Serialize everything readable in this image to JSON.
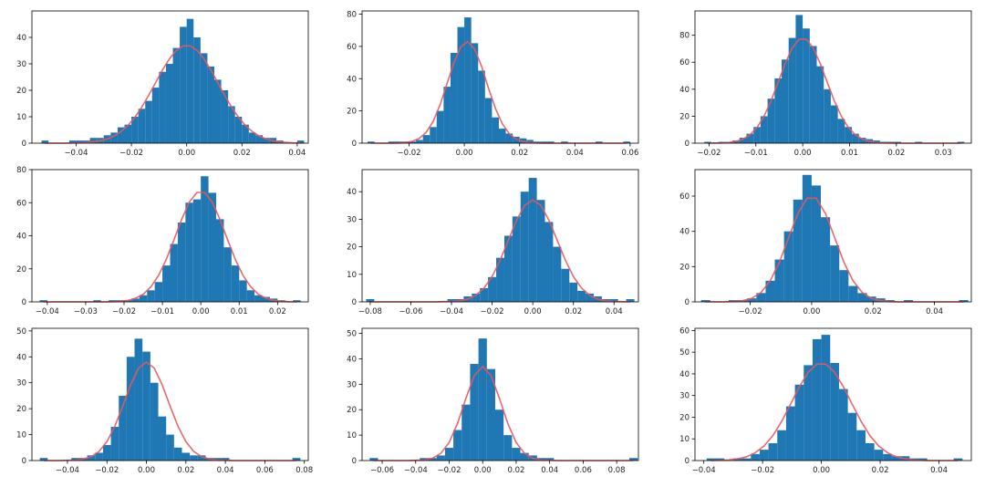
{
  "chart_data": [
    {
      "type": "histogram",
      "color": "#1f77b4",
      "line": {
        "color": "#e8585c",
        "values": [
          0,
          0,
          0,
          0,
          0.1,
          0.1,
          0.3,
          0.5,
          0.9,
          1.6,
          2.7,
          4.4,
          6.7,
          9.8,
          13.6,
          18.1,
          22.9,
          27.7,
          31.9,
          35.1,
          36.8,
          36.8,
          35.1,
          31.9,
          27.7,
          22.9,
          18.1,
          13.6,
          9.8,
          6.7,
          4.4,
          2.7,
          1.6,
          0.9,
          0.5,
          0.3,
          0.1,
          0.1
        ]
      },
      "bins": [
        -0.0525,
        -0.05,
        -0.0475,
        -0.045,
        -0.0425,
        -0.04,
        -0.0375,
        -0.035,
        -0.0325,
        -0.03,
        -0.0275,
        -0.025,
        -0.0225,
        -0.02,
        -0.0175,
        -0.015,
        -0.0125,
        -0.01,
        -0.0075,
        -0.005,
        -0.0025,
        0,
        0.0025,
        0.005,
        0.0075,
        0.01,
        0.0125,
        0.015,
        0.0175,
        0.02,
        0.0225,
        0.025,
        0.0275,
        0.03,
        0.0325,
        0.035,
        0.0375,
        0.04,
        0.0425
      ],
      "counts": [
        1,
        0,
        0,
        0,
        1,
        1,
        1,
        2,
        2,
        3,
        4,
        6,
        7,
        10,
        13,
        16,
        21,
        27,
        30,
        36,
        44,
        47,
        40,
        34,
        29,
        24,
        20,
        14,
        10,
        7,
        4,
        3,
        2,
        2,
        1,
        0,
        0,
        1
      ],
      "xlim": [
        -0.056,
        0.044
      ],
      "xticks": [
        {
          "value": -0.04,
          "label": "−0.04"
        },
        {
          "value": -0.02,
          "label": "−0.02"
        },
        {
          "value": 0,
          "label": "0.00"
        },
        0.02,
        0.04
      ],
      "ylim": [
        0,
        50
      ],
      "yticks": [
        0,
        10,
        20,
        30,
        40
      ]
    },
    {
      "type": "histogram",
      "color": "#1f77b4",
      "line": {
        "color": "#e8585c",
        "values": [
          0,
          0,
          0,
          0,
          0.1,
          0.4,
          1.2,
          3.0,
          6.8,
          13.6,
          23.9,
          36.9,
          50.0,
          59.8,
          63,
          58.3,
          47.6,
          34.1,
          21.6,
          12.0,
          5.9,
          2.5,
          1.0,
          0.3,
          0.1,
          0,
          0,
          0,
          0,
          0,
          0,
          0,
          0,
          0,
          0,
          0,
          0,
          0
        ]
      },
      "bins": [
        -0.035,
        -0.0325,
        -0.03,
        -0.0275,
        -0.025,
        -0.0225,
        -0.02,
        -0.0175,
        -0.015,
        -0.0125,
        -0.01,
        -0.0075,
        -0.005,
        -0.0025,
        0,
        0.0025,
        0.005,
        0.0075,
        0.01,
        0.0125,
        0.015,
        0.0175,
        0.02,
        0.0225,
        0.025,
        0.0275,
        0.03,
        0.0325,
        0.035,
        0.0375,
        0.04,
        0.0425,
        0.045,
        0.0475,
        0.05,
        0.0525,
        0.055,
        0.0575,
        0.06
      ],
      "counts": [
        1,
        0,
        0,
        1,
        1,
        1,
        1,
        2,
        5,
        10,
        20,
        35,
        56,
        72,
        78,
        62,
        45,
        28,
        16,
        9,
        6,
        4,
        3,
        2,
        1,
        1,
        1,
        0,
        1,
        0,
        0,
        0,
        0,
        1,
        0,
        0,
        0,
        1
      ],
      "xlim": [
        -0.037,
        0.063
      ],
      "xticks": [
        {
          "value": -0.02,
          "label": "−0.02"
        },
        {
          "value": 0,
          "label": "0.00"
        },
        0.02,
        0.04,
        0.06
      ],
      "ylim": [
        0,
        82
      ],
      "yticks": [
        0,
        20,
        40,
        60,
        80
      ]
    },
    {
      "type": "histogram",
      "color": "#1f77b4",
      "line": {
        "color": "#e8585c",
        "values": [
          0,
          0.1,
          0.2,
          0.5,
          1.3,
          3.0,
          6.2,
          11.6,
          20.0,
          31.4,
          45.0,
          58.9,
          70.5,
          77.1,
          77.1,
          70.5,
          58.9,
          45.0,
          31.4,
          20.0,
          11.6,
          6.2,
          3.0,
          1.3,
          0.5,
          0.2,
          0.1,
          0,
          0,
          0,
          0,
          0,
          0,
          0,
          0,
          0,
          0
        ]
      },
      "bins": [
        -0.021,
        -0.0195,
        -0.018,
        -0.0165,
        -0.015,
        -0.0135,
        -0.012,
        -0.0105,
        -0.009,
        -0.0075,
        -0.006,
        -0.0045,
        -0.003,
        -0.0015,
        0,
        0.0015,
        0.003,
        0.0045,
        0.006,
        0.0075,
        0.009,
        0.0105,
        0.012,
        0.0135,
        0.015,
        0.0165,
        0.018,
        0.0195,
        0.021,
        0.0225,
        0.024,
        0.0255,
        0.027,
        0.0285,
        0.03,
        0.0315,
        0.033,
        0.0345
      ],
      "counts": [
        1,
        0,
        1,
        1,
        2,
        4,
        7,
        12,
        20,
        33,
        48,
        62,
        78,
        95,
        85,
        72,
        57,
        40,
        28,
        18,
        12,
        7,
        4,
        3,
        2,
        1,
        1,
        1,
        0,
        0,
        1,
        0,
        0,
        0,
        0,
        0,
        1
      ],
      "xlim": [
        -0.023,
        0.036
      ],
      "xticks": [
        {
          "value": -0.02,
          "label": "−0.02"
        },
        {
          "value": -0.01,
          "label": "−0.01"
        },
        {
          "value": 0,
          "label": "0.00"
        },
        0.01,
        0.02,
        0.03
      ],
      "ylim": [
        0,
        98
      ],
      "yticks": [
        0,
        20,
        40,
        60,
        80
      ]
    },
    {
      "type": "histogram",
      "color": "#1f77b4",
      "line": {
        "color": "#e8585c",
        "values": [
          0,
          0,
          0,
          0,
          0,
          0,
          0,
          0,
          0,
          0.1,
          0.4,
          0.9,
          2.2,
          4.6,
          9.1,
          16.0,
          25.6,
          37.5,
          49.8,
          60.3,
          66.2,
          66.2,
          60.3,
          49.8,
          37.5,
          25.6,
          16.0,
          9.1,
          4.6,
          2.2,
          0.9,
          0.4,
          0.1,
          0
        ]
      },
      "bins": [
        -0.042,
        -0.04,
        -0.038,
        -0.036,
        -0.034,
        -0.032,
        -0.03,
        -0.028,
        -0.026,
        -0.024,
        -0.022,
        -0.02,
        -0.018,
        -0.016,
        -0.014,
        -0.012,
        -0.01,
        -0.008,
        -0.006,
        -0.004,
        -0.002,
        0,
        0.002,
        0.004,
        0.006,
        0.008,
        0.01,
        0.012,
        0.014,
        0.016,
        0.018,
        0.02,
        0.022,
        0.024,
        0.026
      ],
      "counts": [
        1,
        0,
        0,
        0,
        0,
        0,
        0,
        1,
        0,
        1,
        1,
        1,
        2,
        4,
        7,
        12,
        22,
        35,
        48,
        60,
        62,
        76,
        66,
        50,
        33,
        22,
        13,
        7,
        4,
        3,
        2,
        1,
        0,
        1
      ],
      "xlim": [
        -0.044,
        0.028
      ],
      "xticks": [
        {
          "value": -0.04,
          "label": "−0.04"
        },
        {
          "value": -0.03,
          "label": "−0.03"
        },
        {
          "value": -0.02,
          "label": "−0.02"
        },
        {
          "value": -0.01,
          "label": "−0.01"
        },
        {
          "value": 0,
          "label": "0.00"
        },
        0.01,
        0.02
      ],
      "ylim": [
        0,
        80
      ],
      "yticks": [
        0,
        20,
        40,
        60,
        80
      ]
    },
    {
      "type": "histogram",
      "color": "#1f77b4",
      "line": {
        "color": "#e8585c",
        "values": [
          0,
          0,
          0,
          0,
          0,
          0,
          0,
          0,
          0,
          0.1,
          0.1,
          0.4,
          1.0,
          2.4,
          5.0,
          9.2,
          15.2,
          22.4,
          29.6,
          35.0,
          37,
          35.0,
          29.6,
          22.4,
          15.2,
          9.2,
          5.0,
          2.4,
          1.0,
          0.4,
          0.1,
          0.1,
          0
        ]
      },
      "bins": [
        -0.082,
        -0.078,
        -0.074,
        -0.07,
        -0.066,
        -0.062,
        -0.058,
        -0.054,
        -0.05,
        -0.046,
        -0.042,
        -0.038,
        -0.034,
        -0.03,
        -0.026,
        -0.022,
        -0.018,
        -0.014,
        -0.01,
        -0.006,
        -0.002,
        0.002,
        0.006,
        0.01,
        0.014,
        0.018,
        0.022,
        0.026,
        0.03,
        0.034,
        0.038,
        0.042,
        0.046,
        0.05
      ],
      "counts": [
        1,
        0,
        0,
        0,
        0,
        0,
        0,
        0,
        0,
        0,
        1,
        1,
        2,
        3,
        5,
        9,
        16,
        24,
        31,
        40,
        45,
        37,
        29,
        20,
        12,
        7,
        4,
        3,
        2,
        1,
        1,
        0,
        1
      ],
      "xlim": [
        -0.084,
        0.052
      ],
      "xticks": [
        {
          "value": -0.08,
          "label": "−0.08"
        },
        {
          "value": -0.06,
          "label": "−0.06"
        },
        {
          "value": -0.04,
          "label": "−0.04"
        },
        {
          "value": -0.02,
          "label": "−0.02"
        },
        {
          "value": 0,
          "label": "0.00"
        },
        0.02,
        0.04
      ],
      "ylim": [
        0,
        48
      ],
      "yticks": [
        0,
        10,
        20,
        30,
        40
      ]
    },
    {
      "type": "histogram",
      "color": "#1f77b4",
      "line": {
        "color": "#e8585c",
        "values": [
          0,
          0,
          0,
          0.2,
          0.7,
          2.0,
          5.3,
          11.9,
          22.5,
          36.4,
          50.1,
          58.8,
          58.8,
          50.1,
          36.4,
          22.5,
          11.9,
          5.3,
          2.0,
          0.7,
          0.2,
          0,
          0,
          0,
          0,
          0,
          0,
          0,
          0
        ]
      },
      "bins": [
        -0.036,
        -0.033,
        -0.03,
        -0.027,
        -0.024,
        -0.021,
        -0.018,
        -0.015,
        -0.012,
        -0.009,
        -0.006,
        -0.003,
        0,
        0.003,
        0.006,
        0.009,
        0.012,
        0.015,
        0.018,
        0.021,
        0.024,
        0.027,
        0.03,
        0.033,
        0.036,
        0.039,
        0.042,
        0.045,
        0.048,
        0.051
      ],
      "counts": [
        1,
        0,
        0,
        1,
        1,
        2,
        5,
        12,
        24,
        40,
        58,
        72,
        66,
        48,
        32,
        18,
        9,
        5,
        3,
        2,
        1,
        0,
        1,
        0,
        0,
        0,
        0,
        0,
        1
      ],
      "xlim": [
        -0.038,
        0.052
      ],
      "xticks": [
        {
          "value": -0.02,
          "label": "−0.02"
        },
        {
          "value": 0,
          "label": "0.00"
        },
        0.02,
        0.04
      ],
      "ylim": [
        0,
        75
      ],
      "yticks": [
        0,
        20,
        40,
        60
      ]
    },
    {
      "type": "histogram",
      "color": "#1f77b4",
      "line": {
        "color": "#e8585c",
        "values": [
          0,
          0,
          0,
          0.1,
          0.2,
          0.6,
          1.5,
          3.5,
          7.3,
          13.2,
          21.0,
          29.2,
          35.6,
          38,
          35.6,
          29.2,
          21.0,
          13.2,
          7.3,
          3.5,
          1.5,
          0.6,
          0.2,
          0.1,
          0,
          0,
          0,
          0,
          0,
          0,
          0,
          0,
          0
        ]
      },
      "bins": [
        -0.054,
        -0.05,
        -0.046,
        -0.042,
        -0.038,
        -0.034,
        -0.03,
        -0.026,
        -0.022,
        -0.018,
        -0.014,
        -0.01,
        -0.006,
        -0.002,
        0.002,
        0.006,
        0.01,
        0.014,
        0.018,
        0.022,
        0.026,
        0.03,
        0.034,
        0.038,
        0.042,
        0.046,
        0.05,
        0.054,
        0.058,
        0.062,
        0.066,
        0.07,
        0.074,
        0.078
      ],
      "counts": [
        1,
        0,
        0,
        0,
        1,
        1,
        2,
        3,
        6,
        13,
        25,
        40,
        47,
        42,
        30,
        17,
        10,
        5,
        3,
        2,
        2,
        1,
        1,
        1,
        0,
        0,
        0,
        0,
        0,
        0,
        0,
        0,
        1
      ],
      "xlim": [
        -0.058,
        0.082
      ],
      "xticks": [
        {
          "value": -0.04,
          "label": "−0.04"
        },
        {
          "value": -0.02,
          "label": "−0.02"
        },
        {
          "value": 0,
          "label": "0.00"
        },
        0.02,
        0.04,
        0.06,
        0.08
      ],
      "ylim": [
        0,
        51
      ],
      "yticks": [
        0,
        10,
        20,
        30,
        40,
        50
      ]
    },
    {
      "type": "histogram",
      "color": "#1f77b4",
      "line": {
        "color": "#e8585c",
        "values": [
          0,
          0,
          0,
          0,
          0,
          0.1,
          0.2,
          0.9,
          2.8,
          7.1,
          14.6,
          24.5,
          33.4,
          37,
          33.4,
          24.5,
          14.6,
          7.1,
          2.8,
          0.9,
          0.2,
          0.1,
          0,
          0,
          0,
          0,
          0,
          0,
          0,
          0,
          0,
          0
        ]
      },
      "bins": [
        -0.0675,
        -0.0625,
        -0.0575,
        -0.0525,
        -0.0475,
        -0.0425,
        -0.0375,
        -0.0325,
        -0.0275,
        -0.0225,
        -0.0175,
        -0.0125,
        -0.0075,
        -0.0025,
        0.0025,
        0.0075,
        0.0125,
        0.0175,
        0.0225,
        0.0275,
        0.0325,
        0.0375,
        0.0425,
        0.0475,
        0.0525,
        0.0575,
        0.0625,
        0.0675,
        0.0725,
        0.0775,
        0.0825,
        0.0875,
        0.0925
      ],
      "counts": [
        1,
        0,
        0,
        0,
        0,
        0,
        1,
        1,
        2,
        5,
        12,
        22,
        38,
        48,
        36,
        20,
        10,
        5,
        3,
        2,
        1,
        1,
        0,
        0,
        0,
        0,
        0,
        0,
        0,
        0,
        0,
        1
      ],
      "xlim": [
        -0.072,
        0.093
      ],
      "xticks": [
        {
          "value": -0.06,
          "label": "−0.06"
        },
        {
          "value": -0.04,
          "label": "−0.04"
        },
        {
          "value": -0.02,
          "label": "−0.02"
        },
        {
          "value": 0,
          "label": "0.00"
        },
        0.02,
        0.04,
        0.06,
        0.08
      ],
      "ylim": [
        0,
        52
      ],
      "yticks": [
        0,
        10,
        20,
        30,
        40,
        50
      ]
    },
    {
      "type": "histogram",
      "color": "#1f77b4",
      "line": {
        "color": "#e8585c",
        "values": [
          0,
          0.1,
          0.3,
          0.8,
          1.7,
          3.6,
          6.7,
          11.5,
          18.1,
          25.9,
          34.0,
          40.7,
          44.5,
          44.5,
          40.7,
          34.0,
          25.9,
          18.1,
          11.5,
          6.7,
          3.6,
          1.7,
          0.8,
          0.3,
          0.1,
          0,
          0,
          0,
          0
        ]
      },
      "bins": [
        -0.039,
        -0.036,
        -0.033,
        -0.03,
        -0.027,
        -0.024,
        -0.021,
        -0.018,
        -0.015,
        -0.012,
        -0.009,
        -0.006,
        -0.003,
        0,
        0.003,
        0.006,
        0.009,
        0.012,
        0.015,
        0.018,
        0.021,
        0.024,
        0.027,
        0.03,
        0.033,
        0.036,
        0.039,
        0.042,
        0.045,
        0.048
      ],
      "counts": [
        1,
        1,
        0,
        1,
        1,
        3,
        5,
        8,
        14,
        25,
        35,
        44,
        56,
        58,
        45,
        33,
        22,
        14,
        8,
        5,
        3,
        2,
        2,
        1,
        1,
        0,
        0,
        0,
        1
      ],
      "xlim": [
        -0.043,
        0.051
      ],
      "xticks": [
        {
          "value": -0.04,
          "label": "−0.04"
        },
        {
          "value": -0.02,
          "label": "−0.02"
        },
        {
          "value": 0,
          "label": "0.00"
        },
        0.02,
        0.04
      ],
      "ylim": [
        0,
        61
      ],
      "yticks": [
        0,
        10,
        20,
        30,
        40,
        50,
        60
      ]
    }
  ]
}
